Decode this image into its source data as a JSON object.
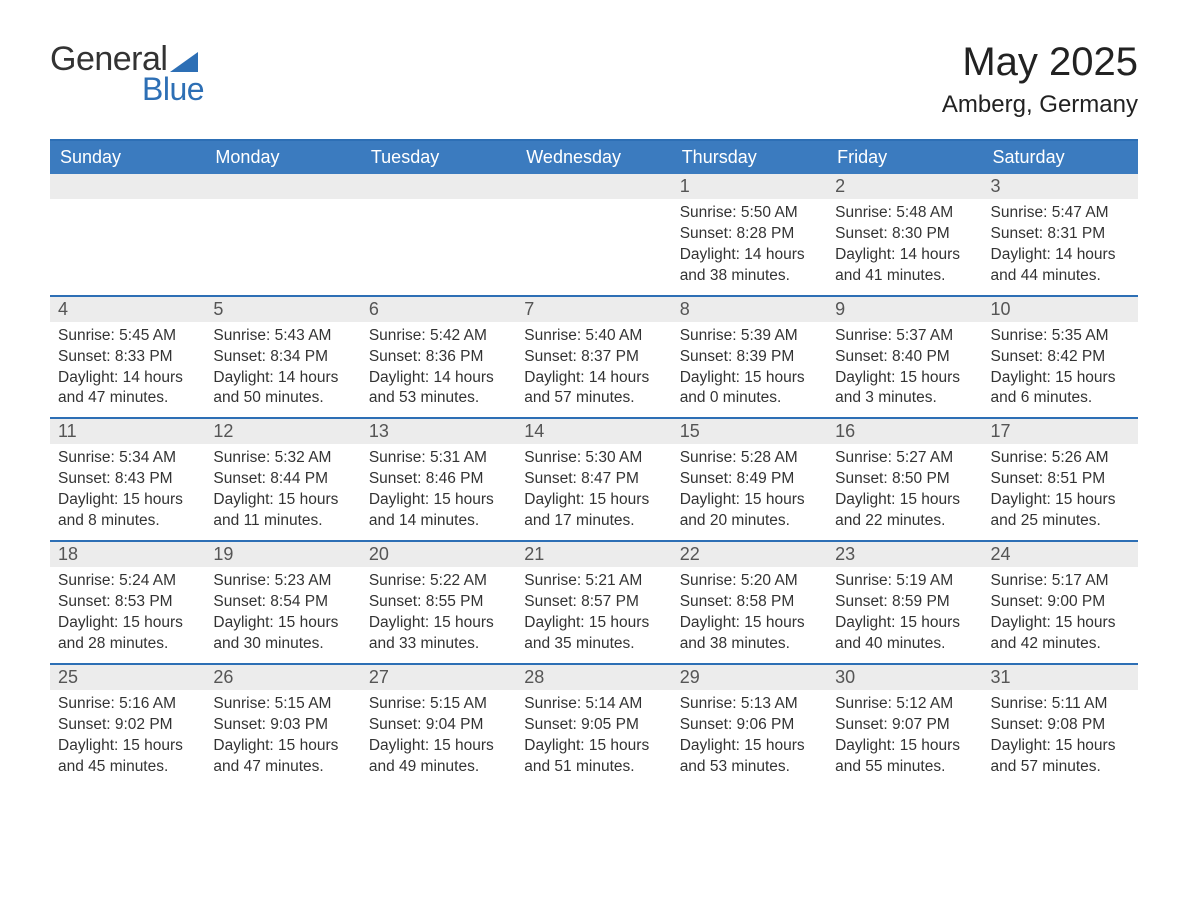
{
  "logo": {
    "part1": "General",
    "part2": "Blue"
  },
  "title": "May 2025",
  "location": "Amberg, Germany",
  "colors": {
    "brand_blue": "#2d6fb5",
    "header_blue": "#3b7bbf",
    "daynum_bg": "#ececec",
    "text": "#333333",
    "background": "#ffffff"
  },
  "day_headers": [
    "Sunday",
    "Monday",
    "Tuesday",
    "Wednesday",
    "Thursday",
    "Friday",
    "Saturday"
  ],
  "weeks": [
    [
      {
        "empty": true
      },
      {
        "empty": true
      },
      {
        "empty": true
      },
      {
        "empty": true
      },
      {
        "num": "1",
        "sunrise": "Sunrise: 5:50 AM",
        "sunset": "Sunset: 8:28 PM",
        "daylight": "Daylight: 14 hours and 38 minutes."
      },
      {
        "num": "2",
        "sunrise": "Sunrise: 5:48 AM",
        "sunset": "Sunset: 8:30 PM",
        "daylight": "Daylight: 14 hours and 41 minutes."
      },
      {
        "num": "3",
        "sunrise": "Sunrise: 5:47 AM",
        "sunset": "Sunset: 8:31 PM",
        "daylight": "Daylight: 14 hours and 44 minutes."
      }
    ],
    [
      {
        "num": "4",
        "sunrise": "Sunrise: 5:45 AM",
        "sunset": "Sunset: 8:33 PM",
        "daylight": "Daylight: 14 hours and 47 minutes."
      },
      {
        "num": "5",
        "sunrise": "Sunrise: 5:43 AM",
        "sunset": "Sunset: 8:34 PM",
        "daylight": "Daylight: 14 hours and 50 minutes."
      },
      {
        "num": "6",
        "sunrise": "Sunrise: 5:42 AM",
        "sunset": "Sunset: 8:36 PM",
        "daylight": "Daylight: 14 hours and 53 minutes."
      },
      {
        "num": "7",
        "sunrise": "Sunrise: 5:40 AM",
        "sunset": "Sunset: 8:37 PM",
        "daylight": "Daylight: 14 hours and 57 minutes."
      },
      {
        "num": "8",
        "sunrise": "Sunrise: 5:39 AM",
        "sunset": "Sunset: 8:39 PM",
        "daylight": "Daylight: 15 hours and 0 minutes."
      },
      {
        "num": "9",
        "sunrise": "Sunrise: 5:37 AM",
        "sunset": "Sunset: 8:40 PM",
        "daylight": "Daylight: 15 hours and 3 minutes."
      },
      {
        "num": "10",
        "sunrise": "Sunrise: 5:35 AM",
        "sunset": "Sunset: 8:42 PM",
        "daylight": "Daylight: 15 hours and 6 minutes."
      }
    ],
    [
      {
        "num": "11",
        "sunrise": "Sunrise: 5:34 AM",
        "sunset": "Sunset: 8:43 PM",
        "daylight": "Daylight: 15 hours and 8 minutes."
      },
      {
        "num": "12",
        "sunrise": "Sunrise: 5:32 AM",
        "sunset": "Sunset: 8:44 PM",
        "daylight": "Daylight: 15 hours and 11 minutes."
      },
      {
        "num": "13",
        "sunrise": "Sunrise: 5:31 AM",
        "sunset": "Sunset: 8:46 PM",
        "daylight": "Daylight: 15 hours and 14 minutes."
      },
      {
        "num": "14",
        "sunrise": "Sunrise: 5:30 AM",
        "sunset": "Sunset: 8:47 PM",
        "daylight": "Daylight: 15 hours and 17 minutes."
      },
      {
        "num": "15",
        "sunrise": "Sunrise: 5:28 AM",
        "sunset": "Sunset: 8:49 PM",
        "daylight": "Daylight: 15 hours and 20 minutes."
      },
      {
        "num": "16",
        "sunrise": "Sunrise: 5:27 AM",
        "sunset": "Sunset: 8:50 PM",
        "daylight": "Daylight: 15 hours and 22 minutes."
      },
      {
        "num": "17",
        "sunrise": "Sunrise: 5:26 AM",
        "sunset": "Sunset: 8:51 PM",
        "daylight": "Daylight: 15 hours and 25 minutes."
      }
    ],
    [
      {
        "num": "18",
        "sunrise": "Sunrise: 5:24 AM",
        "sunset": "Sunset: 8:53 PM",
        "daylight": "Daylight: 15 hours and 28 minutes."
      },
      {
        "num": "19",
        "sunrise": "Sunrise: 5:23 AM",
        "sunset": "Sunset: 8:54 PM",
        "daylight": "Daylight: 15 hours and 30 minutes."
      },
      {
        "num": "20",
        "sunrise": "Sunrise: 5:22 AM",
        "sunset": "Sunset: 8:55 PM",
        "daylight": "Daylight: 15 hours and 33 minutes."
      },
      {
        "num": "21",
        "sunrise": "Sunrise: 5:21 AM",
        "sunset": "Sunset: 8:57 PM",
        "daylight": "Daylight: 15 hours and 35 minutes."
      },
      {
        "num": "22",
        "sunrise": "Sunrise: 5:20 AM",
        "sunset": "Sunset: 8:58 PM",
        "daylight": "Daylight: 15 hours and 38 minutes."
      },
      {
        "num": "23",
        "sunrise": "Sunrise: 5:19 AM",
        "sunset": "Sunset: 8:59 PM",
        "daylight": "Daylight: 15 hours and 40 minutes."
      },
      {
        "num": "24",
        "sunrise": "Sunrise: 5:17 AM",
        "sunset": "Sunset: 9:00 PM",
        "daylight": "Daylight: 15 hours and 42 minutes."
      }
    ],
    [
      {
        "num": "25",
        "sunrise": "Sunrise: 5:16 AM",
        "sunset": "Sunset: 9:02 PM",
        "daylight": "Daylight: 15 hours and 45 minutes."
      },
      {
        "num": "26",
        "sunrise": "Sunrise: 5:15 AM",
        "sunset": "Sunset: 9:03 PM",
        "daylight": "Daylight: 15 hours and 47 minutes."
      },
      {
        "num": "27",
        "sunrise": "Sunrise: 5:15 AM",
        "sunset": "Sunset: 9:04 PM",
        "daylight": "Daylight: 15 hours and 49 minutes."
      },
      {
        "num": "28",
        "sunrise": "Sunrise: 5:14 AM",
        "sunset": "Sunset: 9:05 PM",
        "daylight": "Daylight: 15 hours and 51 minutes."
      },
      {
        "num": "29",
        "sunrise": "Sunrise: 5:13 AM",
        "sunset": "Sunset: 9:06 PM",
        "daylight": "Daylight: 15 hours and 53 minutes."
      },
      {
        "num": "30",
        "sunrise": "Sunrise: 5:12 AM",
        "sunset": "Sunset: 9:07 PM",
        "daylight": "Daylight: 15 hours and 55 minutes."
      },
      {
        "num": "31",
        "sunrise": "Sunrise: 5:11 AM",
        "sunset": "Sunset: 9:08 PM",
        "daylight": "Daylight: 15 hours and 57 minutes."
      }
    ]
  ]
}
